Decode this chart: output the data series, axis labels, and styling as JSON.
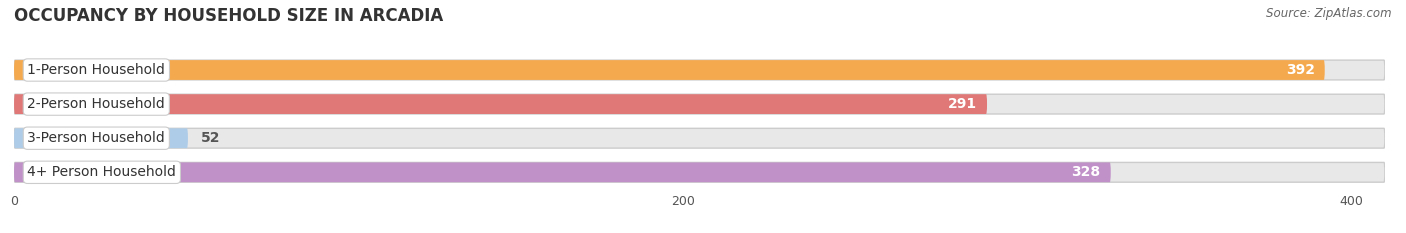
{
  "title": "OCCUPANCY BY HOUSEHOLD SIZE IN ARCADIA",
  "source": "Source: ZipAtlas.com",
  "categories": [
    "1-Person Household",
    "2-Person Household",
    "3-Person Household",
    "4+ Person Household"
  ],
  "values": [
    392,
    291,
    52,
    328
  ],
  "bar_colors": [
    "#F5A94E",
    "#E07878",
    "#AECCE8",
    "#C090C8"
  ],
  "xlim_max": 410,
  "xticks": [
    0,
    200,
    400
  ],
  "background_color": "#FFFFFF",
  "bar_bg_color": "#E8E8E8",
  "bar_border_color": "#DDDDDD",
  "title_fontsize": 12,
  "label_fontsize": 10,
  "value_fontsize": 10,
  "bar_height": 0.58,
  "bar_spacing": 1.0
}
